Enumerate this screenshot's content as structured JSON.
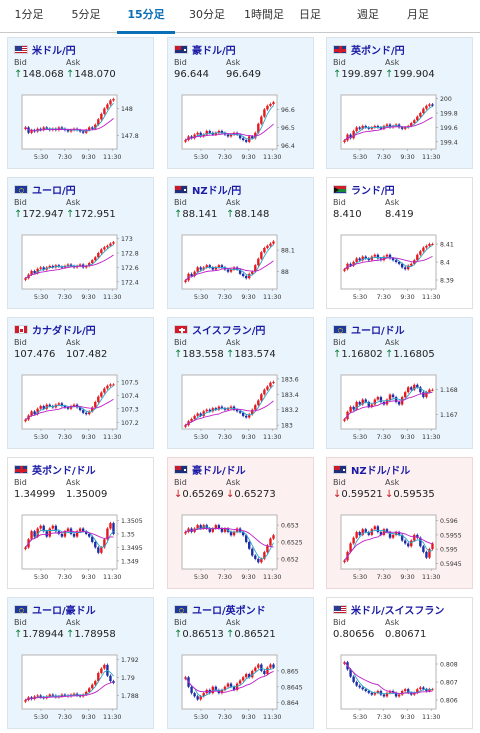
{
  "tabs": [
    {
      "label": "1分足",
      "active": false
    },
    {
      "label": "5分足",
      "active": false
    },
    {
      "label": "15分足",
      "active": true
    },
    {
      "label": "30分足",
      "active": false
    },
    {
      "label": "1時間足",
      "active": false
    },
    {
      "label": "日足",
      "active": false
    },
    {
      "label": "週足",
      "active": false
    },
    {
      "label": "月足",
      "active": false
    }
  ],
  "labels": {
    "bid": "Bid",
    "ask": "Ask"
  },
  "colors": {
    "up_bg": "#eaf4fc",
    "down_bg": "#fdf0f0",
    "candle_up": "#e6191e",
    "candle_down": "#1d2ea8",
    "ma_short": "#2aa6c8",
    "ma_long": "#c01fc8",
    "pair_link": "#1a1aa5"
  },
  "x_ticks": [
    "5:30",
    "7:30",
    "9:30",
    "11:30"
  ],
  "pairs": [
    {
      "name": "米ドル/円",
      "flag": "us-jp",
      "trend": "up",
      "bid": "148.068",
      "ask": "148.070",
      "bid_arrow": "↑",
      "ask_arrow": "↑",
      "y_ticks": [
        "148",
        "147.8"
      ],
      "chart_data": {
        "type": "candlestick",
        "x_ticks": [
          "5:30",
          "7:30",
          "9:30",
          "11:30"
        ],
        "y_ticks": [
          148,
          147.8
        ],
        "ylim": [
          147.7,
          148.1
        ],
        "close": [
          147.86,
          147.82,
          147.84,
          147.83,
          147.85,
          147.84,
          147.86,
          147.85,
          147.84,
          147.85,
          147.84,
          147.86,
          147.85,
          147.84,
          147.83,
          147.84,
          147.85,
          147.84,
          147.83,
          147.82,
          147.84,
          147.86,
          147.85,
          147.88,
          147.92,
          147.96,
          148.0,
          148.03,
          148.06,
          148.07
        ]
      }
    },
    {
      "name": "豪ドル/円",
      "flag": "au-jp",
      "trend": "up",
      "bid": "96.644",
      "ask": "96.649",
      "bid_arrow": "",
      "ask_arrow": "",
      "y_ticks": [
        "96.6",
        "96.5",
        "96.4"
      ],
      "chart_data": {
        "type": "candlestick",
        "x_ticks": [
          "5:30",
          "7:30",
          "9:30",
          "11:30"
        ],
        "y_ticks": [
          96.6,
          96.5,
          96.4
        ],
        "ylim": [
          96.38,
          96.68
        ],
        "close": [
          96.43,
          96.45,
          96.44,
          96.46,
          96.47,
          96.45,
          96.46,
          96.48,
          96.47,
          96.46,
          96.47,
          96.48,
          96.47,
          96.46,
          96.45,
          96.46,
          96.47,
          96.46,
          96.44,
          96.43,
          96.42,
          96.45,
          96.44,
          96.47,
          96.52,
          96.56,
          96.6,
          96.62,
          96.63,
          96.64
        ]
      }
    },
    {
      "name": "英ポンド/円",
      "flag": "gb-jp",
      "trend": "up",
      "bid": "199.897",
      "ask": "199.904",
      "bid_arrow": "↑",
      "ask_arrow": "↑",
      "y_ticks": [
        "200",
        "199.8",
        "199.6",
        "199.4"
      ],
      "chart_data": {
        "type": "candlestick",
        "x_ticks": [
          "5:30",
          "7:30",
          "9:30",
          "11:30"
        ],
        "y_ticks": [
          200,
          199.8,
          199.6,
          199.4
        ],
        "ylim": [
          199.3,
          200.05
        ],
        "close": [
          199.42,
          199.5,
          199.45,
          199.55,
          199.6,
          199.58,
          199.62,
          199.6,
          199.58,
          199.6,
          199.62,
          199.6,
          199.58,
          199.62,
          199.64,
          199.6,
          199.62,
          199.64,
          199.6,
          199.58,
          199.6,
          199.62,
          199.66,
          199.7,
          199.75,
          199.8,
          199.86,
          199.9,
          199.92,
          199.9
        ]
      }
    },
    {
      "name": "ユーロ/円",
      "flag": "eu-jp",
      "trend": "up",
      "bid": "172.947",
      "ask": "172.951",
      "bid_arrow": "↑",
      "ask_arrow": "↑",
      "y_ticks": [
        "173",
        "172.8",
        "172.6",
        "172.4"
      ],
      "chart_data": {
        "type": "candlestick",
        "x_ticks": [
          "5:30",
          "7:30",
          "9:30",
          "11:30"
        ],
        "y_ticks": [
          173,
          172.8,
          172.6,
          172.4
        ],
        "ylim": [
          172.3,
          173.05
        ],
        "close": [
          172.45,
          172.5,
          172.55,
          172.52,
          172.58,
          172.6,
          172.57,
          172.6,
          172.62,
          172.6,
          172.63,
          172.61,
          172.6,
          172.62,
          172.64,
          172.62,
          172.6,
          172.62,
          172.64,
          172.6,
          172.62,
          172.66,
          172.7,
          172.74,
          172.8,
          172.85,
          172.88,
          172.9,
          172.93,
          172.95
        ]
      }
    },
    {
      "name": "NZドル/円",
      "flag": "nz-jp",
      "trend": "up",
      "bid": "88.141",
      "ask": "88.148",
      "bid_arrow": "↑",
      "ask_arrow": "↑",
      "y_ticks": [
        "88.1",
        "88"
      ],
      "chart_data": {
        "type": "candlestick",
        "x_ticks": [
          "5:30",
          "7:30",
          "9:30",
          "11:30"
        ],
        "y_ticks": [
          88.1,
          88
        ],
        "ylim": [
          87.92,
          88.17
        ],
        "close": [
          87.96,
          87.99,
          87.98,
          88.0,
          88.02,
          88.01,
          88.02,
          88.03,
          88.02,
          88.01,
          88.02,
          88.03,
          88.02,
          88.01,
          88.0,
          88.01,
          88.02,
          88.01,
          87.99,
          87.98,
          87.97,
          87.99,
          88.0,
          88.03,
          88.06,
          88.09,
          88.11,
          88.12,
          88.13,
          88.14
        ]
      }
    },
    {
      "name": "ランド/円",
      "flag": "za-jp",
      "trend": "flat",
      "bid": "8.410",
      "ask": "8.419",
      "bid_arrow": "",
      "ask_arrow": "",
      "y_ticks": [
        "8.41",
        "8.4",
        "8.39"
      ],
      "chart_data": {
        "type": "candlestick",
        "x_ticks": [
          "5:30",
          "7:30",
          "9:30",
          "11:30"
        ],
        "y_ticks": [
          8.41,
          8.4,
          8.39
        ],
        "ylim": [
          8.385,
          8.415
        ],
        "close": [
          8.396,
          8.399,
          8.398,
          8.4,
          8.402,
          8.401,
          8.403,
          8.402,
          8.401,
          8.403,
          8.404,
          8.402,
          8.401,
          8.403,
          8.404,
          8.402,
          8.401,
          8.4,
          8.399,
          8.397,
          8.396,
          8.398,
          8.399,
          8.401,
          8.404,
          8.406,
          8.408,
          8.409,
          8.41,
          8.41
        ]
      }
    },
    {
      "name": "カナダドル/円",
      "flag": "ca-jp",
      "trend": "up",
      "bid": "107.476",
      "ask": "107.482",
      "bid_arrow": "",
      "ask_arrow": "",
      "y_ticks": [
        "107.5",
        "107.4",
        "107.3",
        "107.2"
      ],
      "chart_data": {
        "type": "candlestick",
        "x_ticks": [
          "5:30",
          "7:30",
          "9:30",
          "11:30"
        ],
        "y_ticks": [
          107.5,
          107.4,
          107.3,
          107.2
        ],
        "ylim": [
          107.15,
          107.55
        ],
        "close": [
          107.22,
          107.25,
          107.28,
          107.26,
          107.3,
          107.32,
          107.3,
          107.33,
          107.32,
          107.31,
          107.33,
          107.34,
          107.32,
          107.31,
          107.3,
          107.32,
          107.33,
          107.31,
          107.29,
          107.27,
          107.26,
          107.28,
          107.31,
          107.35,
          107.39,
          107.42,
          107.45,
          107.47,
          107.48,
          107.48
        ]
      }
    },
    {
      "name": "スイスフラン/円",
      "flag": "ch-jp",
      "trend": "up",
      "bid": "183.558",
      "ask": "183.574",
      "bid_arrow": "↑",
      "ask_arrow": "↑",
      "y_ticks": [
        "183.6",
        "183.4",
        "183.2",
        "183"
      ],
      "chart_data": {
        "type": "candlestick",
        "x_ticks": [
          "5:30",
          "7:30",
          "9:30",
          "11:30"
        ],
        "y_ticks": [
          183.6,
          183.4,
          183.2,
          183
        ],
        "ylim": [
          182.95,
          183.65
        ],
        "close": [
          183.0,
          183.05,
          183.08,
          183.12,
          183.15,
          183.12,
          183.18,
          183.2,
          183.18,
          183.22,
          183.2,
          183.24,
          183.22,
          183.2,
          183.22,
          183.24,
          183.2,
          183.18,
          183.16,
          183.12,
          183.1,
          183.14,
          183.2,
          183.26,
          183.32,
          183.4,
          183.46,
          183.5,
          183.55,
          183.56
        ]
      }
    },
    {
      "name": "ユーロ/ドル",
      "flag": "eu-us",
      "trend": "up",
      "bid": "1.16802",
      "ask": "1.16805",
      "bid_arrow": "↑",
      "ask_arrow": "↑",
      "y_ticks": [
        "1.168",
        "1.167"
      ],
      "chart_data": {
        "type": "candlestick",
        "x_ticks": [
          "5:30",
          "7:30",
          "9:30",
          "11:30"
        ],
        "y_ticks": [
          1.168,
          1.167
        ],
        "ylim": [
          1.1664,
          1.1686
        ],
        "close": [
          1.1668,
          1.1671,
          1.1673,
          1.1672,
          1.1675,
          1.1674,
          1.1676,
          1.1675,
          1.1673,
          1.1674,
          1.1676,
          1.1677,
          1.1675,
          1.1674,
          1.1676,
          1.1678,
          1.1677,
          1.1675,
          1.1674,
          1.1677,
          1.1679,
          1.1681,
          1.168,
          1.1682,
          1.1681,
          1.1679,
          1.1677,
          1.1679,
          1.168,
          1.168
        ]
      }
    },
    {
      "name": "英ポンド/ドル",
      "flag": "gb-us",
      "trend": "flat",
      "bid": "1.34999",
      "ask": "1.35009",
      "bid_arrow": "",
      "ask_arrow": "",
      "y_ticks": [
        "1.3505",
        "1.35",
        "1.3495",
        "1.349"
      ],
      "chart_data": {
        "type": "candlestick",
        "x_ticks": [
          "5:30",
          "7:30",
          "9:30",
          "11:30"
        ],
        "y_ticks": [
          1.3505,
          1.35,
          1.3495,
          1.349
        ],
        "ylim": [
          1.3487,
          1.3507
        ],
        "close": [
          1.3495,
          1.3498,
          1.3501,
          1.3499,
          1.3502,
          1.3503,
          1.3501,
          1.3499,
          1.3502,
          1.3503,
          1.3501,
          1.35,
          1.3499,
          1.3501,
          1.3502,
          1.35,
          1.3499,
          1.3501,
          1.3502,
          1.3501,
          1.35,
          1.3499,
          1.3497,
          1.3495,
          1.3493,
          1.3495,
          1.3498,
          1.3502,
          1.3504,
          1.35
        ]
      }
    },
    {
      "name": "豪ドル/ドル",
      "flag": "au-us",
      "trend": "down",
      "bid": "0.65269",
      "ask": "0.65273",
      "bid_arrow": "↓",
      "ask_arrow": "↓",
      "y_ticks": [
        "0.653",
        "0.6525",
        "0.652"
      ],
      "chart_data": {
        "type": "candlestick",
        "x_ticks": [
          "5:30",
          "7:30",
          "9:30",
          "11:30"
        ],
        "y_ticks": [
          0.653,
          0.6525,
          0.652
        ],
        "ylim": [
          0.6517,
          0.6533
        ],
        "close": [
          0.6528,
          0.6529,
          0.6528,
          0.6529,
          0.653,
          0.6529,
          0.653,
          0.6529,
          0.6528,
          0.6529,
          0.653,
          0.6529,
          0.6528,
          0.6529,
          0.6528,
          0.6527,
          0.6528,
          0.6529,
          0.6528,
          0.6527,
          0.6525,
          0.6523,
          0.6521,
          0.652,
          0.6519,
          0.652,
          0.6522,
          0.6524,
          0.6526,
          0.6527
        ]
      }
    },
    {
      "name": "NZドル/ドル",
      "flag": "nz-us",
      "trend": "down",
      "bid": "0.59521",
      "ask": "0.59535",
      "bid_arrow": "↓",
      "ask_arrow": "↓",
      "y_ticks": [
        "0.596",
        "0.5955",
        "0.595",
        "0.5945"
      ],
      "chart_data": {
        "type": "candlestick",
        "x_ticks": [
          "5:30",
          "7:30",
          "9:30",
          "11:30"
        ],
        "y_ticks": [
          0.596,
          0.5955,
          0.595,
          0.5945
        ],
        "ylim": [
          0.5943,
          0.5962
        ],
        "close": [
          0.5946,
          0.5949,
          0.5952,
          0.5954,
          0.5956,
          0.5955,
          0.5957,
          0.5956,
          0.5955,
          0.5957,
          0.5958,
          0.5956,
          0.5955,
          0.5957,
          0.5956,
          0.5954,
          0.5955,
          0.5956,
          0.5955,
          0.5953,
          0.5952,
          0.5951,
          0.5953,
          0.5955,
          0.5954,
          0.5951,
          0.5949,
          0.5947,
          0.595,
          0.5952
        ]
      }
    },
    {
      "name": "ユーロ/豪ドル",
      "flag": "eu-au",
      "trend": "up",
      "bid": "1.78944",
      "ask": "1.78958",
      "bid_arrow": "↑",
      "ask_arrow": "↑",
      "y_ticks": [
        "1.792",
        "1.79",
        "1.788"
      ],
      "chart_data": {
        "type": "candlestick",
        "x_ticks": [
          "5:30",
          "7:30",
          "9:30",
          "11:30"
        ],
        "y_ticks": [
          1.792,
          1.79,
          1.788
        ],
        "ylim": [
          1.7865,
          1.7925
        ],
        "close": [
          1.7875,
          1.7878,
          1.7876,
          1.7879,
          1.788,
          1.7878,
          1.7877,
          1.7879,
          1.7881,
          1.788,
          1.7878,
          1.7879,
          1.7881,
          1.788,
          1.7879,
          1.7881,
          1.7882,
          1.788,
          1.7879,
          1.7881,
          1.7884,
          1.7888,
          1.7892,
          1.7896,
          1.7905,
          1.791,
          1.7914,
          1.7902,
          1.7896,
          1.7894
        ]
      }
    },
    {
      "name": "ユーロ/英ポンド",
      "flag": "eu-gb",
      "trend": "up",
      "bid": "0.86513",
      "ask": "0.86521",
      "bid_arrow": "↑",
      "ask_arrow": "↑",
      "y_ticks": [
        "0.865",
        "0.8645",
        "0.864"
      ],
      "chart_data": {
        "type": "candlestick",
        "x_ticks": [
          "5:30",
          "7:30",
          "9:30",
          "11:30"
        ],
        "y_ticks": [
          0.865,
          0.8645,
          0.864
        ],
        "ylim": [
          0.8638,
          0.8655
        ],
        "close": [
          0.8648,
          0.8645,
          0.8643,
          0.8642,
          0.8641,
          0.8642,
          0.8643,
          0.8644,
          0.8643,
          0.8645,
          0.8644,
          0.8643,
          0.8644,
          0.8645,
          0.8646,
          0.8645,
          0.8644,
          0.8646,
          0.8647,
          0.8648,
          0.8649,
          0.8648,
          0.865,
          0.8651,
          0.8652,
          0.865,
          0.8649,
          0.8651,
          0.8652,
          0.8651
        ]
      }
    },
    {
      "name": "米ドル/スイスフラン",
      "flag": "us-ch",
      "trend": "flat",
      "bid": "0.80656",
      "ask": "0.80671",
      "bid_arrow": "",
      "ask_arrow": "",
      "y_ticks": [
        "0.808",
        "0.807",
        "0.806"
      ],
      "chart_data": {
        "type": "candlestick",
        "x_ticks": [
          "5:30",
          "7:30",
          "9:30",
          "11:30"
        ],
        "y_ticks": [
          0.808,
          0.807,
          0.806
        ],
        "ylim": [
          0.8055,
          0.8085
        ],
        "close": [
          0.8081,
          0.8077,
          0.8073,
          0.807,
          0.8068,
          0.8067,
          0.8066,
          0.8065,
          0.8064,
          0.8063,
          0.8064,
          0.8065,
          0.8063,
          0.8062,
          0.8064,
          0.8065,
          0.8064,
          0.8062,
          0.8063,
          0.8065,
          0.8066,
          0.8064,
          0.8063,
          0.8064,
          0.8066,
          0.8067,
          0.8066,
          0.8065,
          0.8066,
          0.8066
        ]
      }
    }
  ]
}
